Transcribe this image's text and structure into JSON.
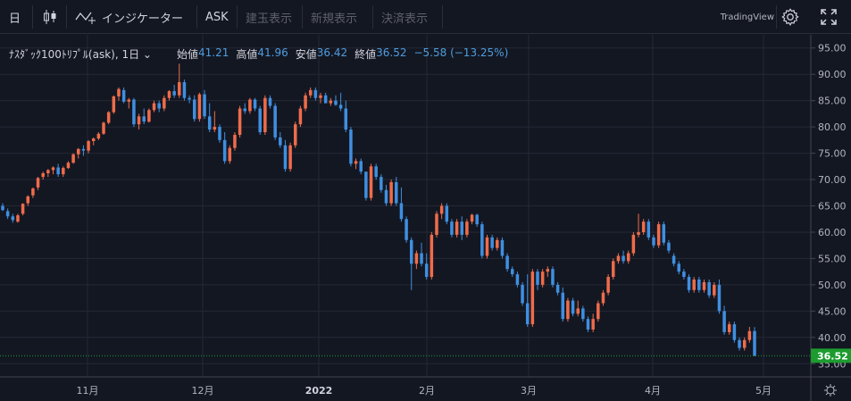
{
  "toolbar": {
    "interval": "日",
    "indicators_label": "インジケーター",
    "price_side": "ASK",
    "tab_buy": "建玉表示",
    "tab_new": "新規表示",
    "tab_settle": "決済表示",
    "brand": "TradingView"
  },
  "legend": {
    "symbol": "ﾅｽﾀﾞｯｸ100ﾄﾘﾌﾟﾙ(ask), 1日",
    "open_label": "始値",
    "open": "41.21",
    "high_label": "高値",
    "high": "41.96",
    "low_label": "安値",
    "low": "36.42",
    "close_label": "終値",
    "close": "36.52",
    "change": "−5.58 (−13.25%)"
  },
  "colors": {
    "up": "#ef6c4a",
    "down": "#3f8fe0",
    "bg": "#131722",
    "last_price": "#1c9b2e"
  },
  "chart_data": {
    "type": "candlestick",
    "x_tick_labels": [
      "11月",
      "12月",
      "2022",
      "2月",
      "3月",
      "4月",
      "5月"
    ],
    "y_tick_labels": [
      "35.00",
      "40.00",
      "45.00",
      "50.00",
      "55.00",
      "60.00",
      "65.00",
      "70.00",
      "75.00",
      "80.00",
      "85.00",
      "90.00",
      "95.00"
    ],
    "ylim": [
      32.5,
      97.5
    ],
    "last_price": "36.52",
    "candles": [
      [
        65,
        65.5,
        64,
        64.2
      ],
      [
        64,
        64.5,
        62.5,
        63
      ],
      [
        63,
        63.5,
        61.8,
        62.3
      ],
      [
        62,
        63.5,
        61.8,
        63.2
      ],
      [
        63.5,
        65.5,
        63.2,
        65.4
      ],
      [
        65.5,
        67,
        65,
        66.8
      ],
      [
        67,
        68.5,
        66.5,
        68.3
      ],
      [
        68.5,
        70.5,
        68,
        70.3
      ],
      [
        70.5,
        71.5,
        70,
        71.2
      ],
      [
        71.2,
        72,
        70.5,
        71.8
      ],
      [
        71.8,
        72.5,
        71,
        72.3
      ],
      [
        72.3,
        73,
        70.5,
        71
      ],
      [
        71,
        72.5,
        70.5,
        72.2
      ],
      [
        72.2,
        73.5,
        72,
        73.2
      ],
      [
        73.2,
        75,
        73,
        74.8
      ],
      [
        74.8,
        76,
        74,
        75.8
      ],
      [
        75.8,
        76.5,
        74.5,
        75.5
      ],
      [
        75.5,
        77.5,
        75,
        77.3
      ],
      [
        77.3,
        78,
        76.5,
        77.8
      ],
      [
        77.8,
        79,
        77.5,
        78.7
      ],
      [
        78.7,
        81,
        78.5,
        80.8
      ],
      [
        80.8,
        83,
        80.5,
        82.8
      ],
      [
        82.8,
        86,
        82.5,
        85.8
      ],
      [
        85.8,
        87.5,
        85,
        87.2
      ],
      [
        87,
        87.5,
        84.5,
        84.8
      ],
      [
        84.8,
        85.5,
        83.5,
        85.2
      ],
      [
        85.2,
        85.5,
        80,
        80.5
      ],
      [
        80.5,
        82.5,
        79.5,
        82
      ],
      [
        82,
        83.5,
        80.5,
        81
      ],
      [
        81,
        83.5,
        80.8,
        83.2
      ],
      [
        83.2,
        85,
        82.8,
        84.5
      ],
      [
        84.5,
        85,
        82.8,
        83.5
      ],
      [
        83.5,
        86,
        83,
        85.5
      ],
      [
        85.5,
        87,
        85,
        86.8
      ],
      [
        86.8,
        88,
        85.5,
        86
      ],
      [
        86,
        92,
        85.5,
        88.5
      ],
      [
        88.5,
        89,
        85,
        85.5
      ],
      [
        85.5,
        86,
        84.5,
        85.2
      ],
      [
        85.2,
        86,
        81,
        81.5
      ],
      [
        81.5,
        86.5,
        81,
        86.2
      ],
      [
        86.2,
        87,
        81.5,
        82
      ],
      [
        82,
        84.5,
        79,
        79.5
      ],
      [
        79.5,
        83,
        79,
        80
      ],
      [
        80,
        80.5,
        77,
        77.5
      ],
      [
        77.5,
        79,
        73,
        73.5
      ],
      [
        73.5,
        76.5,
        73,
        76
      ],
      [
        76,
        79,
        75.5,
        78.5
      ],
      [
        78.5,
        84,
        78,
        83.5
      ],
      [
        83.5,
        84.5,
        82.5,
        83
      ],
      [
        83,
        85.5,
        82.5,
        85.2
      ],
      [
        85.2,
        85.5,
        83,
        83.5
      ],
      [
        83.5,
        84,
        78.5,
        79
      ],
      [
        79,
        86,
        78.5,
        85.5
      ],
      [
        85.5,
        86,
        83.5,
        84
      ],
      [
        84,
        84.5,
        77.5,
        78
      ],
      [
        78,
        79,
        76,
        76.5
      ],
      [
        76.5,
        77.5,
        71.5,
        72
      ],
      [
        72,
        77,
        71.5,
        76.5
      ],
      [
        76.5,
        81,
        76,
        80.5
      ],
      [
        80.5,
        84,
        80,
        83.5
      ],
      [
        83.5,
        86.5,
        83,
        86
      ],
      [
        86,
        87.5,
        85.5,
        87
      ],
      [
        87,
        87.5,
        85,
        85.5
      ],
      [
        85.5,
        86.5,
        84.5,
        86
      ],
      [
        86,
        86.5,
        84.5,
        84.5
      ],
      [
        84.5,
        85.5,
        84,
        85
      ],
      [
        85,
        86,
        84,
        84.2
      ],
      [
        84.2,
        86.5,
        83,
        83.5
      ],
      [
        83.5,
        85,
        79,
        79.5
      ],
      [
        79.5,
        80,
        72.5,
        73
      ],
      [
        73,
        74,
        72,
        73.5
      ],
      [
        73.5,
        74,
        71,
        71.5
      ],
      [
        71.5,
        71.5,
        66,
        66.5
      ],
      [
        66.5,
        73,
        66,
        72.5
      ],
      [
        72.5,
        73,
        70,
        70.5
      ],
      [
        70.5,
        71,
        67.5,
        68
      ],
      [
        68,
        69,
        65,
        65.5
      ],
      [
        65.5,
        70,
        65,
        69.5
      ],
      [
        69.5,
        70.5,
        65,
        65.5
      ],
      [
        65.5,
        68.5,
        62,
        62.5
      ],
      [
        62.5,
        63,
        58,
        58.5
      ],
      [
        58.5,
        59,
        49,
        54
      ],
      [
        54,
        56.5,
        53,
        56
      ],
      [
        56,
        58,
        53.5,
        54
      ],
      [
        54,
        56,
        51,
        51.5
      ],
      [
        51.5,
        60,
        51,
        59.5
      ],
      [
        59.5,
        64,
        59,
        63.5
      ],
      [
        63.5,
        65.5,
        62.5,
        65
      ],
      [
        65,
        65.5,
        61.5,
        62
      ],
      [
        62,
        62.5,
        59,
        59.5
      ],
      [
        59.5,
        62.5,
        59,
        62
      ],
      [
        62,
        63,
        58.5,
        59.5
      ],
      [
        59.5,
        62.5,
        59,
        62
      ],
      [
        62,
        63.5,
        61.5,
        63.3
      ],
      [
        63.3,
        63.5,
        61,
        61.5
      ],
      [
        61.5,
        62,
        55,
        55.5
      ],
      [
        55.5,
        59.5,
        55,
        59
      ],
      [
        59,
        59.5,
        56.5,
        57
      ],
      [
        57,
        59,
        56.5,
        58.5
      ],
      [
        58.5,
        59,
        55,
        55.5
      ],
      [
        55.5,
        56,
        52.5,
        53
      ],
      [
        53,
        53.5,
        51.5,
        52
      ],
      [
        52,
        52.5,
        49.5,
        50
      ],
      [
        50,
        50.5,
        46,
        46.5
      ],
      [
        46.5,
        52,
        42,
        42.5
      ],
      [
        42.5,
        53,
        42,
        52.5
      ],
      [
        52.5,
        53,
        49,
        50
      ],
      [
        50,
        53,
        49.5,
        52.5
      ],
      [
        52.5,
        53.5,
        51.5,
        53
      ],
      [
        53,
        53.5,
        49.5,
        50
      ],
      [
        50,
        50.5,
        48,
        48.5
      ],
      [
        48.5,
        49.5,
        43,
        43.5
      ],
      [
        43.5,
        47.5,
        43,
        47
      ],
      [
        47,
        47.5,
        44,
        44.5
      ],
      [
        44.5,
        47,
        44,
        45.5
      ],
      [
        45.5,
        46,
        43,
        43.5
      ],
      [
        43.5,
        44,
        41,
        41.5
      ],
      [
        41.5,
        44.5,
        41,
        43.5
      ],
      [
        43.5,
        47,
        43,
        46.5
      ],
      [
        46.5,
        49,
        46,
        48.5
      ],
      [
        48.5,
        52,
        48,
        51.5
      ],
      [
        51.5,
        55,
        51,
        54.5
      ],
      [
        54.5,
        56,
        54,
        55.5
      ],
      [
        55.5,
        56.5,
        54,
        54.5
      ],
      [
        54.5,
        56.5,
        54,
        56
      ],
      [
        56,
        60,
        55.5,
        59.5
      ],
      [
        59.5,
        63.5,
        59,
        60
      ],
      [
        60,
        62.5,
        59.5,
        62
      ],
      [
        62,
        62.5,
        58.5,
        59
      ],
      [
        59,
        59.5,
        57,
        57.5
      ],
      [
        57.5,
        62,
        57,
        61.5
      ],
      [
        61.5,
        62,
        57.5,
        58
      ],
      [
        58,
        58.5,
        56,
        56.5
      ],
      [
        55.5,
        56,
        53.5,
        54
      ],
      [
        54,
        54.5,
        52,
        52.5
      ],
      [
        52.5,
        53,
        51,
        51.5
      ],
      [
        51.5,
        52,
        48.5,
        49
      ],
      [
        49,
        51.5,
        48.5,
        51
      ],
      [
        51,
        51.5,
        48.5,
        49
      ],
      [
        49,
        51,
        48.5,
        50.5
      ],
      [
        50.5,
        51,
        47.5,
        48
      ],
      [
        48,
        50.5,
        47.5,
        50
      ],
      [
        50,
        51,
        44.5,
        45
      ],
      [
        45,
        46,
        40.5,
        41
      ],
      [
        41,
        43,
        40.5,
        42.5
      ],
      [
        42.5,
        43,
        39,
        39.5
      ],
      [
        39.5,
        40,
        37.5,
        38
      ],
      [
        38,
        40,
        37.5,
        39.5
      ],
      [
        39.5,
        42,
        39,
        41.2
      ],
      [
        41.21,
        41.96,
        36.42,
        36.52
      ]
    ]
  }
}
